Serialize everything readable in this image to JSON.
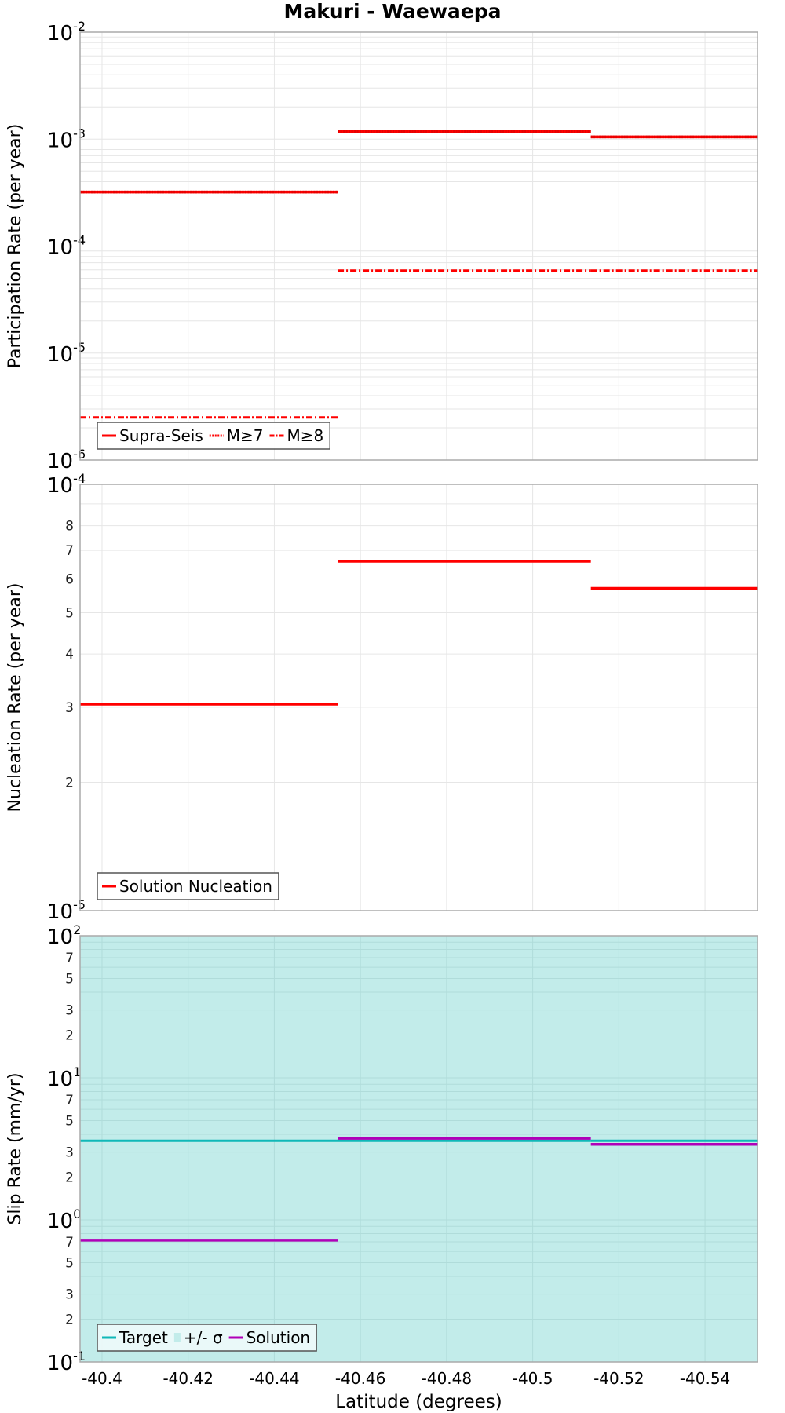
{
  "title": "Makuri - Waewaepa",
  "colors": {
    "supra": "#ff0000",
    "nucleation": "#ff0000",
    "target": "#10b8b8",
    "band": "#c2ecea",
    "solution": "#b000b8",
    "grid": "#e6e6e6",
    "frame": "#aaaaaa"
  },
  "xaxis": {
    "label": "Latitude (degrees)",
    "min": -40.3949,
    "max": -40.5522,
    "ticks": [
      -40.4,
      -40.42,
      -40.44,
      -40.46,
      -40.48,
      -40.5,
      -40.52,
      -40.54
    ],
    "tick_labels": [
      "-40.4",
      "-40.42",
      "-40.44",
      "-40.46",
      "-40.48",
      "-40.5",
      "-40.52",
      "-40.54"
    ]
  },
  "chart_data": [
    {
      "type": "line",
      "title": "Makuri - Waewaepa",
      "ylabel": "Participation Rate (per year)",
      "xlabel": "",
      "yscale": "log",
      "ylim": [
        1e-06,
        0.01
      ],
      "grid": true,
      "legend_position": "lower-left",
      "segments_x": [
        [
          -40.3949,
          -40.4547
        ],
        [
          -40.4547,
          -40.5135
        ],
        [
          -40.5135,
          -40.5522
        ]
      ],
      "series": [
        {
          "name": "Supra-Seis",
          "style": "solid",
          "values": [
            0.00032,
            0.00118,
            0.00105
          ]
        },
        {
          "name": "M≥7",
          "style": "dotted",
          "values": [
            0.00032,
            0.00118,
            0.00105
          ]
        },
        {
          "name": "M≥8",
          "style": "dashdot",
          "values": [
            2.5e-06,
            5.9e-05,
            5.9e-05
          ]
        }
      ],
      "ytick_labels": [
        {
          "base": "10",
          "exp": "-2",
          "value": 0.01
        },
        {
          "base": "10",
          "exp": "-3",
          "value": 0.001
        },
        {
          "base": "10",
          "exp": "-4",
          "value": 0.0001
        },
        {
          "base": "10",
          "exp": "-5",
          "value": 1e-05
        },
        {
          "base": "10",
          "exp": "-6",
          "value": 1e-06
        }
      ]
    },
    {
      "type": "line",
      "ylabel": "Nucleation Rate (per year)",
      "xlabel": "",
      "yscale": "log",
      "ylim": [
        1e-05,
        0.0001
      ],
      "grid": true,
      "legend_position": "lower-left",
      "segments_x": [
        [
          -40.3949,
          -40.4547
        ],
        [
          -40.4547,
          -40.5135
        ],
        [
          -40.5135,
          -40.5522
        ]
      ],
      "series": [
        {
          "name": "Solution Nucleation",
          "style": "solid",
          "values": [
            3.05e-05,
            6.6e-05,
            5.7e-05
          ]
        }
      ],
      "ytick_labels": [
        {
          "base": "10",
          "exp": "-4",
          "value": 0.0001
        },
        {
          "base": "",
          "exp": "",
          "label": "8",
          "value": 8e-05
        },
        {
          "base": "",
          "exp": "",
          "label": "7",
          "value": 7e-05
        },
        {
          "base": "",
          "exp": "",
          "label": "6",
          "value": 6e-05
        },
        {
          "base": "",
          "exp": "",
          "label": "5",
          "value": 5e-05
        },
        {
          "base": "",
          "exp": "",
          "label": "4",
          "value": 4e-05
        },
        {
          "base": "",
          "exp": "",
          "label": "3",
          "value": 3e-05
        },
        {
          "base": "",
          "exp": "",
          "label": "2",
          "value": 2e-05
        },
        {
          "base": "10",
          "exp": "-5",
          "value": 1e-05
        }
      ]
    },
    {
      "type": "line",
      "ylabel": "Slip Rate (mm/yr)",
      "xlabel": "Latitude (degrees)",
      "yscale": "log",
      "ylim": [
        0.1,
        100
      ],
      "grid": true,
      "legend_position": "lower-left",
      "segments_x": [
        [
          -40.3949,
          -40.4547
        ],
        [
          -40.4547,
          -40.5135
        ],
        [
          -40.5135,
          -40.5522
        ]
      ],
      "band": {
        "name": "+/- σ",
        "lower": 0.1,
        "upper": 100
      },
      "series": [
        {
          "name": "Target",
          "style": "solid",
          "values": [
            3.6,
            3.6,
            3.6
          ]
        },
        {
          "name": "Solution",
          "style": "solid",
          "values": [
            0.72,
            3.75,
            3.4
          ]
        }
      ],
      "ytick_labels": [
        {
          "base": "10",
          "exp": "2",
          "value": 100
        },
        {
          "base": "",
          "exp": "",
          "label": "7",
          "value": 70
        },
        {
          "base": "",
          "exp": "",
          "label": "5",
          "value": 50
        },
        {
          "base": "",
          "exp": "",
          "label": "3",
          "value": 30
        },
        {
          "base": "",
          "exp": "",
          "label": "2",
          "value": 20
        },
        {
          "base": "10",
          "exp": "1",
          "value": 10
        },
        {
          "base": "",
          "exp": "",
          "label": "7",
          "value": 7
        },
        {
          "base": "",
          "exp": "",
          "label": "5",
          "value": 5
        },
        {
          "base": "",
          "exp": "",
          "label": "3",
          "value": 3
        },
        {
          "base": "",
          "exp": "",
          "label": "2",
          "value": 2
        },
        {
          "base": "10",
          "exp": "0",
          "value": 1
        },
        {
          "base": "",
          "exp": "",
          "label": "7",
          "value": 0.7
        },
        {
          "base": "",
          "exp": "",
          "label": "5",
          "value": 0.5
        },
        {
          "base": "",
          "exp": "",
          "label": "3",
          "value": 0.3
        },
        {
          "base": "",
          "exp": "",
          "label": "2",
          "value": 0.2
        },
        {
          "base": "10",
          "exp": "-1",
          "value": 0.1
        }
      ]
    }
  ],
  "legends": [
    {
      "items": [
        {
          "label": "Supra-Seis",
          "style": "solid"
        },
        {
          "label": "M≥7",
          "style": "dotted"
        },
        {
          "label": "M≥8",
          "style": "dashdot"
        }
      ]
    },
    {
      "items": [
        {
          "label": "Solution Nucleation",
          "style": "solid"
        }
      ]
    },
    {
      "items": [
        {
          "label": "Target",
          "style": "target"
        },
        {
          "label": "+/- σ",
          "style": "band"
        },
        {
          "label": "Solution",
          "style": "solution"
        }
      ]
    }
  ]
}
